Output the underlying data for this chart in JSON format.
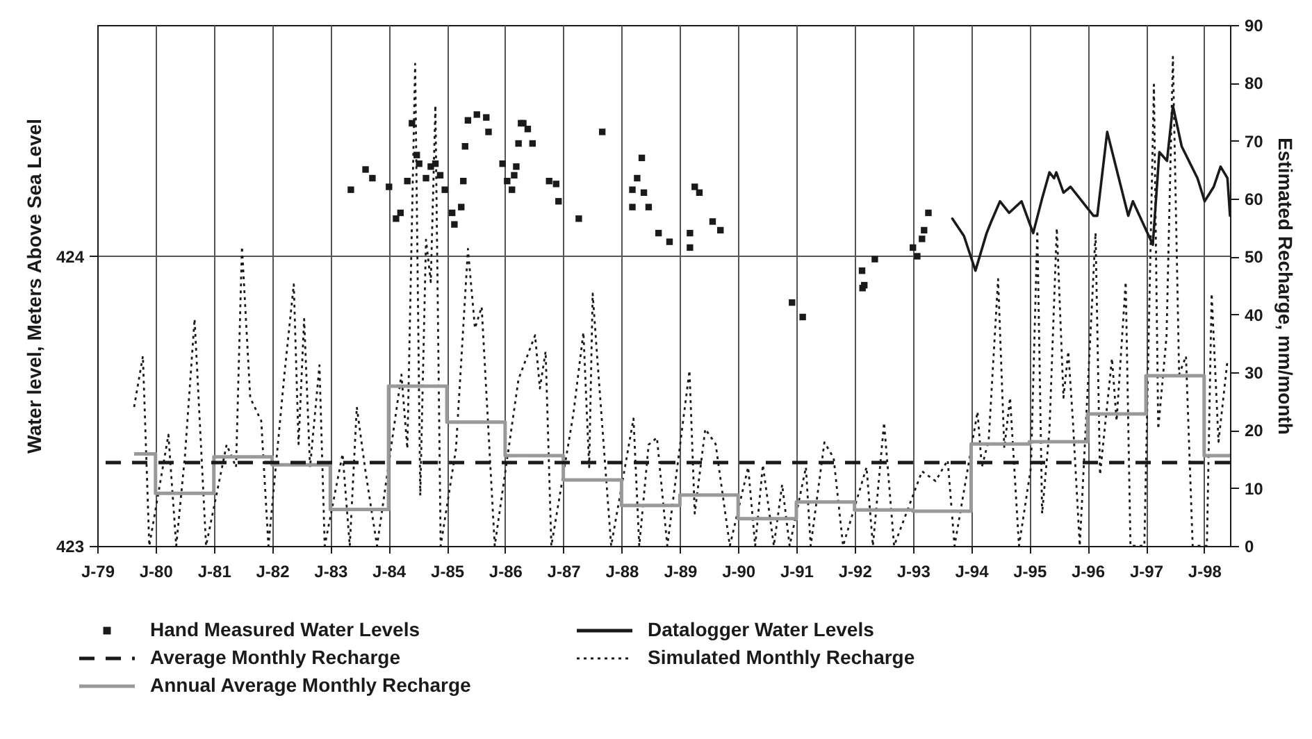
{
  "chart_data": {
    "type": "line",
    "xlim": [
      "1979-01-01",
      "1998-06-12"
    ],
    "xticks": [
      {
        "value": "1979-01-01",
        "label": "J-79"
      },
      {
        "value": "1980-01-01",
        "label": "J-80"
      },
      {
        "value": "1981-01-01",
        "label": "J-81"
      },
      {
        "value": "1982-01-01",
        "label": "J-82"
      },
      {
        "value": "1983-01-01",
        "label": "J-83"
      },
      {
        "value": "1984-01-01",
        "label": "J-84"
      },
      {
        "value": "1985-01-01",
        "label": "J-85"
      },
      {
        "value": "1986-01-01",
        "label": "J-86"
      },
      {
        "value": "1987-01-01",
        "label": "J-87"
      },
      {
        "value": "1988-01-01",
        "label": "J-88"
      },
      {
        "value": "1989-01-01",
        "label": "J-89"
      },
      {
        "value": "1990-01-01",
        "label": "J-90"
      },
      {
        "value": "1991-01-01",
        "label": "J-91"
      },
      {
        "value": "1992-01-01",
        "label": "J-92"
      },
      {
        "value": "1993-01-01",
        "label": "J-93"
      },
      {
        "value": "1994-01-01",
        "label": "J-94"
      },
      {
        "value": "1995-01-01",
        "label": "J-95"
      },
      {
        "value": "1996-01-01",
        "label": "J-96"
      },
      {
        "value": "1997-01-01",
        "label": "J-97"
      },
      {
        "value": "1998-01-01",
        "label": "J-98"
      }
    ],
    "ylim": [
      423,
      424.8
    ],
    "yticks": [
      423,
      424
    ],
    "y2lim": [
      0,
      90
    ],
    "y2ticks": [
      0,
      10,
      20,
      30,
      40,
      50,
      60,
      70,
      80,
      90
    ],
    "ylabel": "Water level, Meters Above Sea Level",
    "y2label": "Estimated Recharge, mm/month",
    "grid": true,
    "legend": "bottom",
    "series": [
      {
        "name": "Hand Measured Water Levels",
        "type": "scatter",
        "marker": "square",
        "color": "#1a1a1a",
        "x": [
          "1983-05-10",
          "1983-08-10",
          "1983-09-22",
          "1984-01-04",
          "1984-02-17",
          "1984-03-16",
          "1984-04-28",
          "1984-05-27",
          "1984-06-26",
          "1984-07-11",
          "1984-08-23",
          "1984-09-22",
          "1984-10-21",
          "1984-11-20",
          "1984-12-19",
          "1985-02-03",
          "1985-02-17",
          "1985-04-01",
          "1985-04-14",
          "1985-04-25",
          "1985-05-13",
          "1985-07-08",
          "1985-09-05",
          "1985-09-19",
          "1985-12-16",
          "1986-01-14",
          "1986-02-13",
          "1986-02-27",
          "1986-03-12",
          "1986-03-26",
          "1986-04-11",
          "1986-04-25",
          "1986-05-23",
          "1986-06-22",
          "1986-10-04",
          "1986-11-17",
          "1986-12-02",
          "1987-04-08",
          "1987-09-02",
          "1988-03-09",
          "1988-03-09",
          "1988-04-08",
          "1988-05-07",
          "1988-05-20",
          "1988-06-19",
          "1988-08-20",
          "1988-10-28",
          "1989-03-05",
          "1989-03-05",
          "1989-04-04",
          "1989-05-03",
          "1989-07-25",
          "1989-09-12",
          "1990-12-05",
          "1991-02-10",
          "1992-02-17",
          "1992-02-20",
          "1992-03-02",
          "1992-05-07",
          "1993-01-01",
          "1993-01-28",
          "1993-02-27",
          "1993-03-12",
          "1993-04-08"
        ],
        "values": [
          424.23,
          424.3,
          424.27,
          424.24,
          424.13,
          424.15,
          424.26,
          424.46,
          424.35,
          424.32,
          424.27,
          424.31,
          424.32,
          424.28,
          424.23,
          424.15,
          424.11,
          424.17,
          424.26,
          424.38,
          424.47,
          424.49,
          424.48,
          424.43,
          424.32,
          424.26,
          424.23,
          424.28,
          424.31,
          424.39,
          424.46,
          424.46,
          424.44,
          424.39,
          424.26,
          424.25,
          424.19,
          424.13,
          424.43,
          424.23,
          424.17,
          424.27,
          424.34,
          424.22,
          424.17,
          424.08,
          424.05,
          424.08,
          424.03,
          424.24,
          424.22,
          424.12,
          424.09,
          423.84,
          423.79,
          423.95,
          423.89,
          423.9,
          423.99,
          424.03,
          424.0,
          424.06,
          424.09,
          424.15
        ]
      },
      {
        "name": "Datalogger Water Levels",
        "color": "#1a1a1a",
        "x": [
          "1993-09-05",
          "1993-11-17",
          "1994-01-28",
          "1994-04-08",
          "1994-05-07",
          "1994-07-01",
          "1994-08-27",
          "1994-11-13",
          "1995-01-25",
          "1995-03-22",
          "1995-05-07",
          "1995-06-05",
          "1995-06-19",
          "1995-08-03",
          "1995-09-16",
          "1996-02-07",
          "1996-03-02",
          "1996-05-03",
          "1996-09-12",
          "1996-10-11",
          "1997-02-13",
          "1997-03-26",
          "1997-05-13",
          "1997-06-19",
          "1997-08-13",
          "1997-11-20",
          "1998-01-04",
          "1998-03-02",
          "1998-04-14",
          "1998-05-27",
          "1998-06-12"
        ],
        "values": [
          424.13,
          424.07,
          423.95,
          424.08,
          424.12,
          424.19,
          424.15,
          424.19,
          424.08,
          424.2,
          424.29,
          424.27,
          424.29,
          424.22,
          424.24,
          424.14,
          424.14,
          424.43,
          424.14,
          424.19,
          424.04,
          424.36,
          424.33,
          424.52,
          424.38,
          424.27,
          424.19,
          424.24,
          424.31,
          424.27,
          424.14
        ]
      },
      {
        "name": "Simulated Monthly Recharge",
        "line_style": "dotted",
        "axis": "y2",
        "color": "#1a1a1a",
        "x": [
          "1979-08-20",
          "1979-10-14",
          "1979-11-23",
          "1980-03-22",
          "1980-05-10",
          "1980-07-04",
          "1980-09-02",
          "1980-11-13",
          "1981-03-22",
          "1981-05-20",
          "1981-06-26",
          "1981-08-17",
          "1981-10-25",
          "1981-12-09",
          "1982-03-19",
          "1982-05-17",
          "1982-06-16",
          "1982-07-21",
          "1982-08-27",
          "1982-10-25",
          "1982-11-27",
          "1983-03-19",
          "1983-05-03",
          "1983-06-16",
          "1983-08-10",
          "1983-10-21",
          "1984-03-22",
          "1984-04-28",
          "1984-06-16",
          "1984-07-18",
          "1984-08-23",
          "1984-09-22",
          "1984-10-21",
          "1984-11-23",
          "1985-02-27",
          "1985-05-13",
          "1985-06-26",
          "1985-08-07",
          "1985-10-28",
          "1986-03-26",
          "1986-07-08",
          "1986-08-07",
          "1986-09-12",
          "1986-10-18",
          "1987-03-05",
          "1987-05-07",
          "1987-06-12",
          "1987-07-04",
          "1987-08-03",
          "1987-10-28",
          "1988-03-16",
          "1988-04-21",
          "1988-06-19",
          "1988-08-10",
          "1988-10-14",
          "1989-03-02",
          "1989-04-04",
          "1989-06-09",
          "1989-08-13",
          "1989-11-10",
          "1990-03-05",
          "1990-04-18",
          "1990-06-05",
          "1990-08-13",
          "1990-10-04",
          "1990-11-20",
          "1991-03-02",
          "1991-04-01",
          "1991-06-26",
          "1991-08-23",
          "1991-10-21",
          "1992-03-16",
          "1992-04-25",
          "1992-07-04",
          "1992-09-05",
          "1993-02-27",
          "1993-05-23",
          "1993-08-07",
          "1993-09-19",
          "1994-02-10",
          "1994-03-09",
          "1994-04-21",
          "1994-06-19",
          "1994-07-28",
          "1994-09-02",
          "1994-10-28",
          "1995-01-11",
          "1995-02-20",
          "1995-03-22",
          "1995-05-07",
          "1995-06-22",
          "1995-08-03",
          "1995-09-02",
          "1995-10-01",
          "1995-11-13",
          "1996-02-20",
          "1996-03-19",
          "1996-06-02",
          "1996-07-01",
          "1996-08-27",
          "1996-09-26",
          "1996-12-22",
          "1997-02-20",
          "1997-03-19",
          "1997-05-10",
          "1997-06-19",
          "1997-07-28",
          "1997-09-09",
          "1997-10-21",
          "1998-01-18",
          "1998-02-17",
          "1998-04-01",
          "1998-05-27"
        ],
        "values": [
          24,
          32.8,
          0,
          19.2,
          0,
          15.7,
          39.2,
          0,
          17.5,
          13.6,
          51.7,
          25.6,
          21.6,
          0,
          29.6,
          45.2,
          17.6,
          39.2,
          13.6,
          31.2,
          0,
          15.9,
          0,
          24,
          12.8,
          0,
          29.6,
          16.8,
          83.3,
          8.7,
          52.9,
          45.6,
          76.1,
          0,
          16.8,
          51.3,
          37.6,
          41.3,
          0,
          28.8,
          36.4,
          27.2,
          33.6,
          0,
          22.8,
          36.9,
          13.6,
          43.6,
          32,
          0,
          22,
          0,
          17.5,
          18.7,
          0,
          30.3,
          5.6,
          20.2,
          17.6,
          0,
          13.6,
          0,
          14,
          0,
          10.6,
          0,
          13.6,
          0,
          17.9,
          15.2,
          0,
          13.6,
          0,
          21.3,
          0,
          12.9,
          11.2,
          14.8,
          0,
          23.2,
          13.6,
          18.3,
          46.1,
          16.9,
          25.6,
          0,
          13.6,
          54.5,
          5.6,
          20,
          54.9,
          25.6,
          33.6,
          21.6,
          0,
          54.1,
          12.3,
          32.4,
          21.6,
          45.6,
          0,
          0,
          79.7,
          20.2,
          36.2,
          84.5,
          29.6,
          32.8,
          0,
          0,
          43.6,
          18,
          32
        ]
      },
      {
        "name": "Annual Average Monthly Recharge",
        "type": "step",
        "axis": "y2",
        "color": "#999999",
        "x": [
          "1979-08-20",
          "1980-01-01",
          "1981-01-01",
          "1982-01-01",
          "1983-01-01",
          "1984-01-01",
          "1985-01-01",
          "1986-01-01",
          "1987-01-01",
          "1988-01-01",
          "1989-01-01",
          "1990-01-01",
          "1991-01-01",
          "1992-01-01",
          "1993-01-01",
          "1994-01-01",
          "1995-01-01",
          "1996-01-01",
          "1997-01-01",
          "1998-01-01",
          "1998-06-12"
        ],
        "values": [
          15.9,
          9.1,
          15.4,
          14,
          6.3,
          27.6,
          21.4,
          15.6,
          11.4,
          7,
          8.8,
          4.7,
          7.6,
          6.2,
          6,
          17.6,
          18,
          22.8,
          29.4,
          15.6,
          15.6
        ]
      }
    ],
    "ref_lines": [
      {
        "axis": "y2",
        "value": 14.4,
        "label": "Average Monthly Recharge",
        "color": "#1a1a1a",
        "line_style": "dashed"
      }
    ]
  }
}
